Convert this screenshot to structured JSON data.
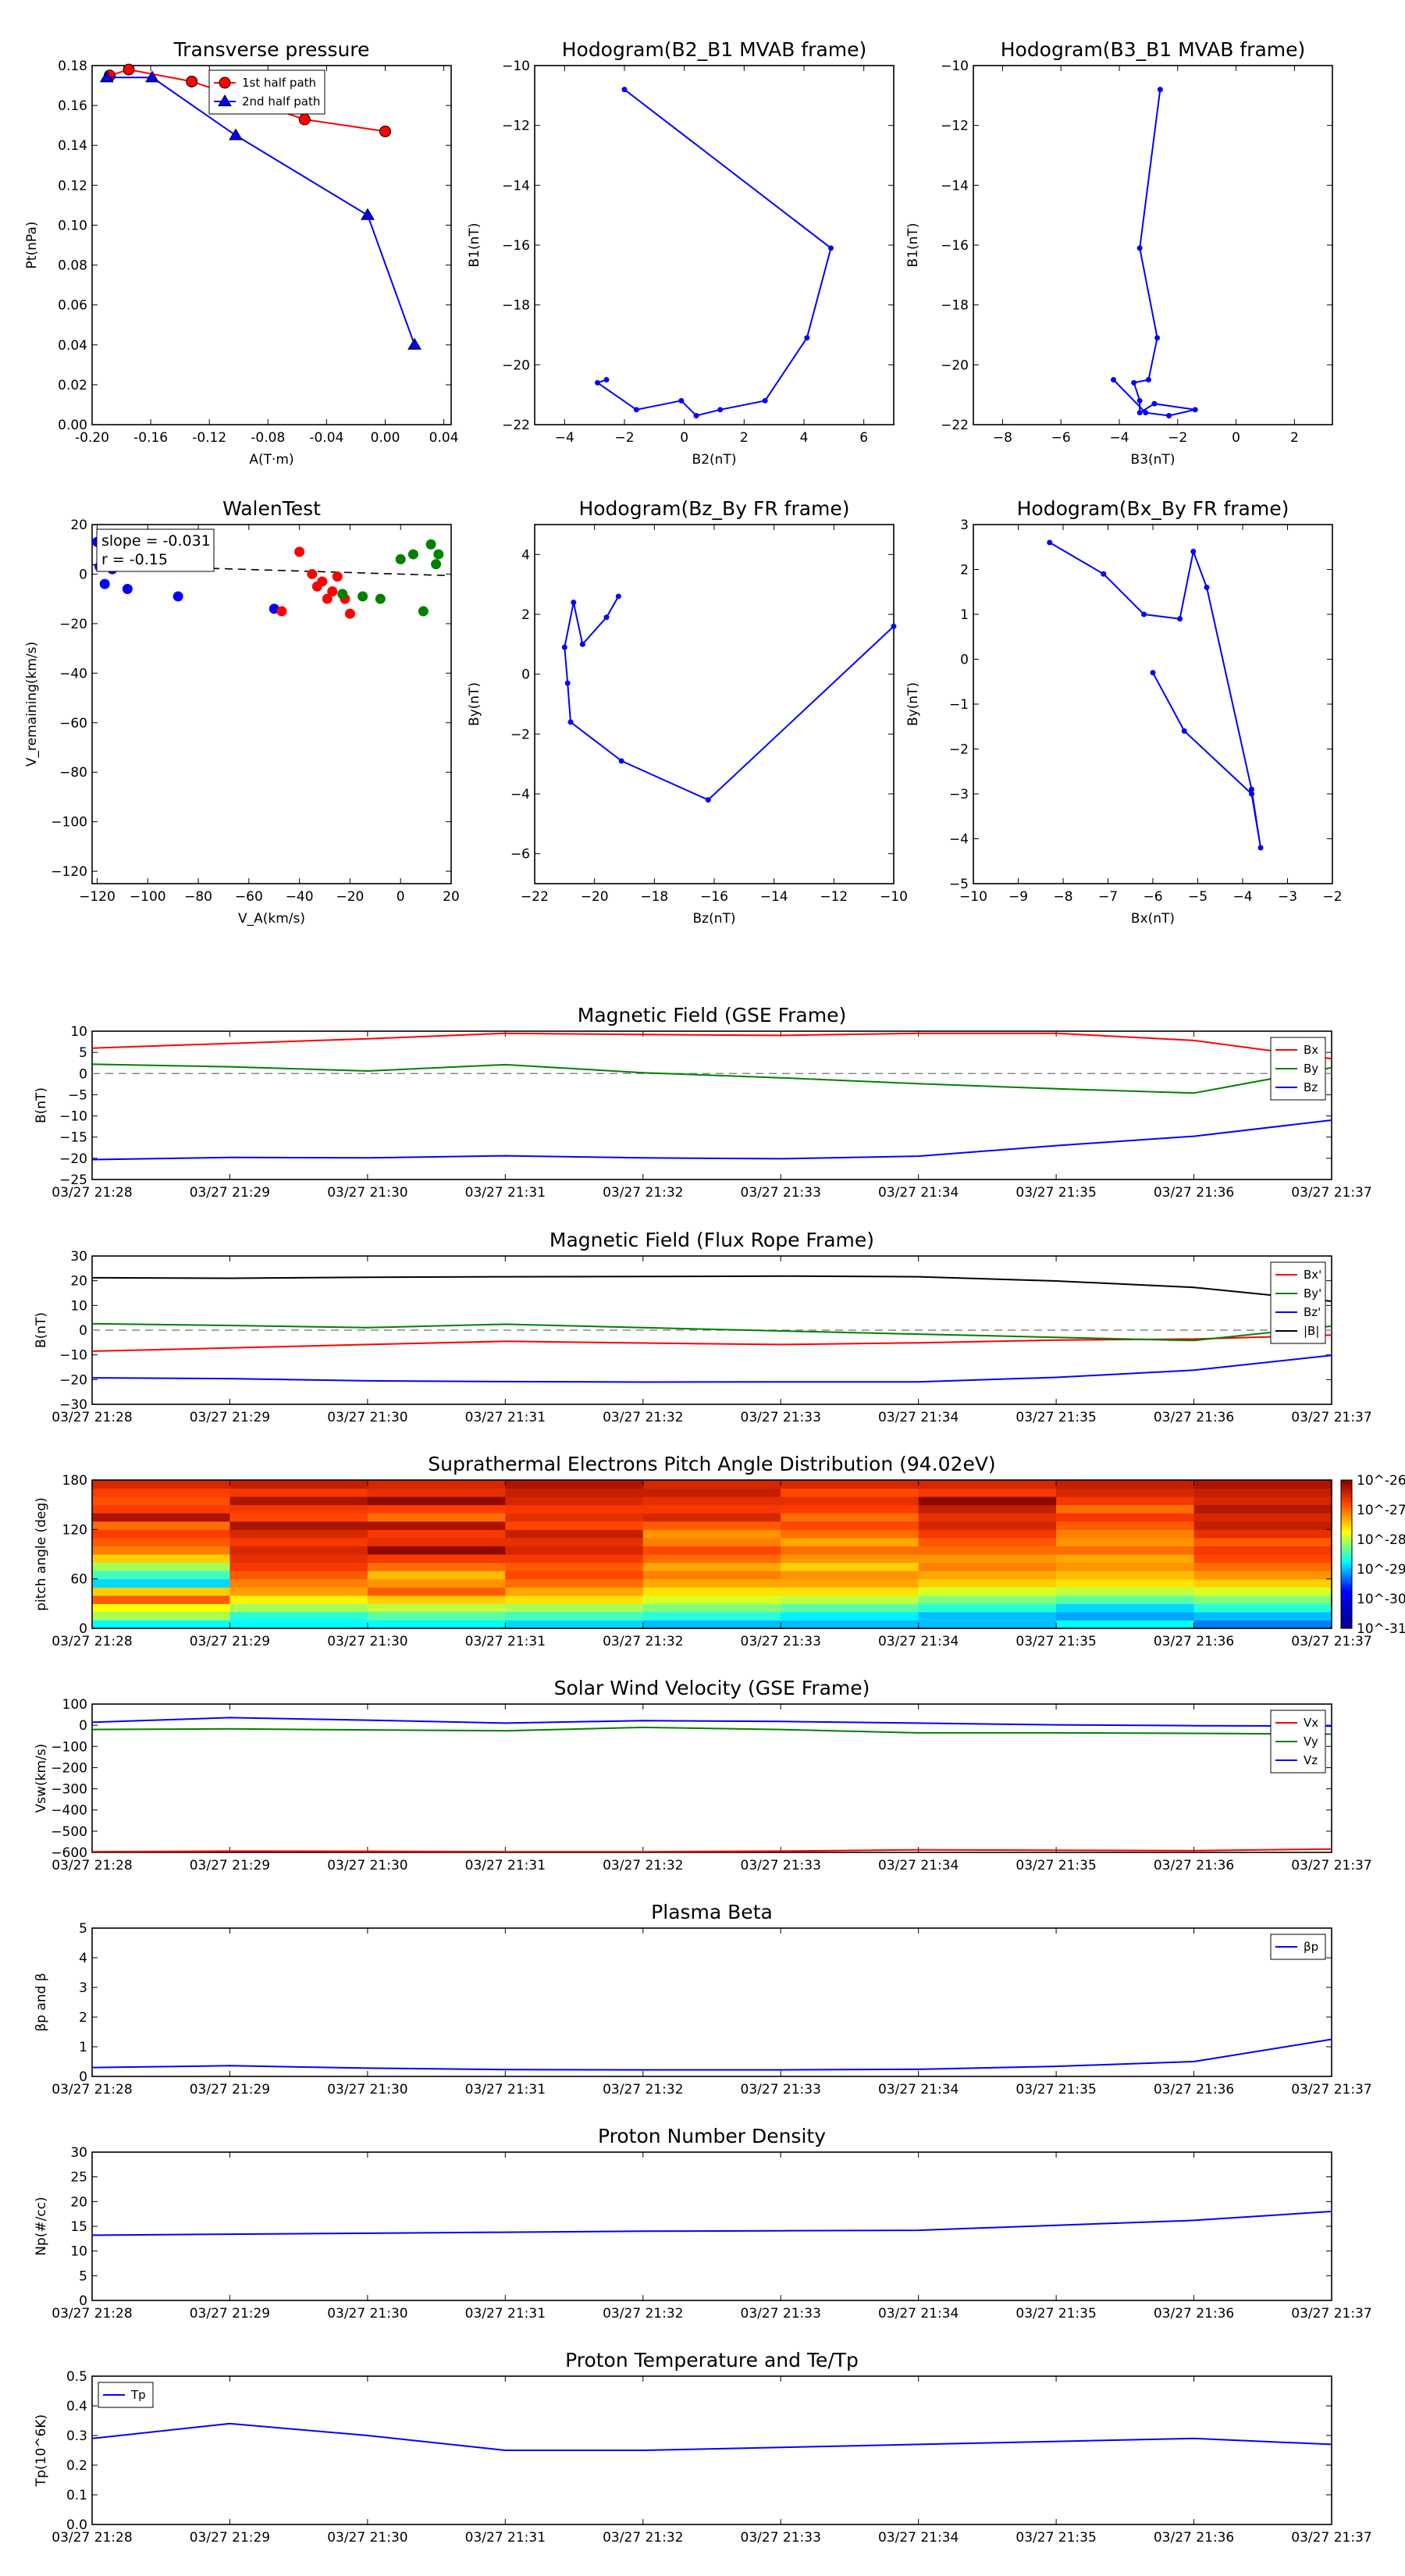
{
  "chart_data": [
    {
      "id": "tp",
      "type": "line",
      "title": "Transverse pressure",
      "xlabel": "A(T·m)",
      "ylabel": "Pt(nPa)",
      "xlim": [
        -0.2,
        0.045
      ],
      "ylim": [
        0,
        0.18
      ],
      "xticks": [
        "-0.20",
        "-0.16",
        "-0.12",
        "-0.08",
        "-0.04",
        "0.00",
        "0.04"
      ],
      "yticks": [
        "0.00",
        "0.02",
        "0.04",
        "0.06",
        "0.08",
        "0.10",
        "0.12",
        "0.14",
        "0.16",
        "0.18"
      ],
      "legend": "top-right",
      "series": [
        {
          "name": "1st half path",
          "color": "#ff0000",
          "marker": "circle",
          "x": [
            0.0,
            -0.055,
            -0.132,
            -0.175,
            -0.188
          ],
          "y": [
            0.147,
            0.153,
            0.172,
            0.178,
            0.175
          ]
        },
        {
          "name": "2nd half path",
          "color": "#0000ff",
          "marker": "triangle",
          "x": [
            -0.19,
            -0.159,
            -0.102,
            -0.012,
            0.02
          ],
          "y": [
            0.174,
            0.174,
            0.145,
            0.105,
            0.04
          ]
        }
      ]
    },
    {
      "id": "h1",
      "type": "line",
      "title": "Hodogram(B2_B1 MVAB frame)",
      "xlabel": "B2(nT)",
      "ylabel": "B1(nT)",
      "xlim": [
        -5,
        7
      ],
      "ylim": [
        -22,
        -10
      ],
      "xticks": [
        "−4",
        "−2",
        "0",
        "2",
        "4",
        "6"
      ],
      "yticks": [
        "−22",
        "−20",
        "−18",
        "−16",
        "−14",
        "−12",
        "−10"
      ],
      "series": [
        {
          "name": "",
          "color": "#0000ff",
          "marker": "dot",
          "x": [
            -2.0,
            4.9,
            4.1,
            2.7,
            1.2,
            0.4,
            -0.1,
            -1.6,
            -2.9,
            -2.6
          ],
          "y": [
            -10.8,
            -16.1,
            -19.1,
            -21.2,
            -21.5,
            -21.7,
            -21.2,
            -21.5,
            -20.6,
            -20.5
          ]
        }
      ]
    },
    {
      "id": "h2",
      "type": "line",
      "title": "Hodogram(B3_B1 MVAB frame)",
      "xlabel": "B3(nT)",
      "ylabel": "B1(nT)",
      "xlim": [
        -9,
        3.3
      ],
      "ylim": [
        -22,
        -10
      ],
      "xticks": [
        "−8",
        "−6",
        "−4",
        "−2",
        "0",
        "2"
      ],
      "yticks": [
        "−22",
        "−20",
        "−18",
        "−16",
        "−14",
        "−12",
        "−10"
      ],
      "series": [
        {
          "name": "",
          "color": "#0000ff",
          "marker": "dot",
          "x": [
            -2.6,
            -3.3,
            -2.7,
            -3.0,
            -3.5,
            -3.3,
            -3.3,
            -2.8,
            -1.4,
            -2.3,
            -3.1,
            -4.2
          ],
          "y": [
            -10.8,
            -16.1,
            -19.1,
            -20.5,
            -20.6,
            -21.2,
            -21.6,
            -21.3,
            -21.5,
            -21.7,
            -21.6,
            -20.5
          ]
        }
      ]
    },
    {
      "id": "walen",
      "type": "scatter",
      "title": "WalenTest",
      "xlabel": "V_A(km/s)",
      "ylabel": "V_remaining(km/s)",
      "xlim": [
        -122,
        20
      ],
      "ylim": [
        -125,
        20
      ],
      "xticks": [
        "−120",
        "−100",
        "−80",
        "−60",
        "−40",
        "−20",
        "0",
        "20"
      ],
      "yticks": [
        "−120",
        "−100",
        "−80",
        "−60",
        "−40",
        "−20",
        "0",
        "20"
      ],
      "annotations": [
        "slope = -0.031",
        "r = -0.15"
      ],
      "fit_line": {
        "slope": -0.031,
        "intercept": 0
      },
      "series": [
        {
          "name": "",
          "color": "#0000ff",
          "x": [
            -120,
            -119,
            -117,
            -114,
            -108,
            -88,
            -50
          ],
          "y": [
            13,
            3,
            -4,
            2,
            -6,
            -9,
            -14
          ]
        },
        {
          "name": "",
          "color": "#ff0000",
          "x": [
            -47,
            -40,
            -35,
            -33,
            -31,
            -29,
            -27,
            -25,
            -22,
            -20
          ],
          "y": [
            -15,
            9,
            0,
            -5,
            -3,
            -10,
            -7,
            -1,
            -10,
            -16
          ]
        },
        {
          "name": "",
          "color": "#008000",
          "x": [
            -23,
            -15,
            -8,
            0,
            5,
            6,
            9,
            12,
            14,
            15
          ],
          "y": [
            -8,
            -9,
            -10,
            6,
            8,
            22,
            -15,
            12,
            4,
            8
          ]
        }
      ]
    },
    {
      "id": "h3",
      "type": "line",
      "title": "Hodogram(Bz_By FR frame)",
      "xlabel": "Bz(nT)",
      "ylabel": "By(nT)",
      "xlim": [
        -22,
        -10
      ],
      "ylim": [
        -7,
        5
      ],
      "xticks": [
        "−22",
        "−20",
        "−18",
        "−16",
        "−14",
        "−12",
        "−10"
      ],
      "yticks": [
        "−6",
        "−4",
        "−2",
        "0",
        "2",
        "4"
      ],
      "series": [
        {
          "name": "",
          "color": "#0000ff",
          "marker": "dot",
          "x": [
            -10,
            -16.2,
            -19.1,
            -20.8,
            -20.9,
            -21.0,
            -20.7,
            -20.4,
            -19.6,
            -19.2
          ],
          "y": [
            1.6,
            -4.2,
            -2.9,
            -1.6,
            -0.3,
            0.9,
            2.4,
            1.0,
            1.9,
            2.6
          ]
        }
      ]
    },
    {
      "id": "h4",
      "type": "line",
      "title": "Hodogram(Bx_By FR frame)",
      "xlabel": "Bx(nT)",
      "ylabel": "By(nT)",
      "xlim": [
        -10,
        -2
      ],
      "ylim": [
        -5,
        3
      ],
      "xticks": [
        "−10",
        "−9",
        "−8",
        "−7",
        "−6",
        "−5",
        "−4",
        "−3",
        "−2"
      ],
      "yticks": [
        "−5",
        "−4",
        "−3",
        "−2",
        "−1",
        "0",
        "1",
        "2",
        "3"
      ],
      "series": [
        {
          "name": "",
          "color": "#0000ff",
          "marker": "dot",
          "x": [
            -8.3,
            -7.1,
            -6.2,
            -5.4,
            -5.1,
            -4.8,
            -3.8,
            -3.6,
            -3.8,
            -5.3,
            -6.0
          ],
          "y": [
            2.6,
            1.9,
            1.0,
            0.9,
            2.4,
            1.6,
            -2.9,
            -4.2,
            -3.0,
            -1.6,
            -0.3
          ]
        }
      ]
    },
    {
      "id": "mgse",
      "type": "line",
      "title": "Magnetic Field (GSE Frame)",
      "xlabel": "",
      "ylabel": "B(nT)",
      "x": [
        "03/27 21:28",
        "03/27 21:29",
        "03/27 21:30",
        "03/27 21:31",
        "03/27 21:32",
        "03/27 21:33",
        "03/27 21:34",
        "03/27 21:35",
        "03/27 21:36",
        "03/27 21:37"
      ],
      "ylim": [
        -25,
        10
      ],
      "yticks": [
        "−25",
        "−20",
        "−15",
        "−10",
        "−5",
        "0",
        "5",
        "10"
      ],
      "zero_line": true,
      "legend": "top-right",
      "series": [
        {
          "name": "Bx",
          "color": "#ff0000",
          "values": [
            6,
            7.1,
            8.2,
            9.5,
            9.2,
            9.0,
            9.5,
            9.5,
            7.8,
            3.5
          ]
        },
        {
          "name": "By",
          "color": "#008000",
          "values": [
            2.2,
            1.6,
            0.6,
            2.1,
            0.2,
            -1.0,
            -2.4,
            -3.6,
            -4.6,
            1.4
          ]
        },
        {
          "name": "Bz",
          "color": "#0000ff",
          "values": [
            -20.3,
            -19.8,
            -19.9,
            -19.4,
            -19.9,
            -20.1,
            -19.5,
            -17.0,
            -14.8,
            -11.0
          ]
        }
      ]
    },
    {
      "id": "mfr",
      "type": "line",
      "title": "Magnetic Field (Flux Rope Frame)",
      "xlabel": "",
      "ylabel": "B(nT)",
      "x": [
        "03/27 21:28",
        "03/27 21:29",
        "03/27 21:30",
        "03/27 21:31",
        "03/27 21:32",
        "03/27 21:33",
        "03/27 21:34",
        "03/27 21:35",
        "03/27 21:36",
        "03/27 21:37"
      ],
      "ylim": [
        -30,
        30
      ],
      "yticks": [
        "−30",
        "−20",
        "−10",
        "0",
        "10",
        "20",
        "30"
      ],
      "zero_line": true,
      "legend": "top-right",
      "series": [
        {
          "name": "Bx'",
          "color": "#ff0000",
          "values": [
            -8.5,
            -7.2,
            -5.8,
            -4.5,
            -5.2,
            -5.8,
            -5.1,
            -4.0,
            -3.6,
            -2.0
          ]
        },
        {
          "name": "By'",
          "color": "#008000",
          "values": [
            2.6,
            1.9,
            1.0,
            2.4,
            1.0,
            -0.3,
            -1.6,
            -2.9,
            -4.2,
            1.6
          ]
        },
        {
          "name": "Bz'",
          "color": "#0000ff",
          "values": [
            -19.3,
            -19.6,
            -20.5,
            -20.8,
            -21.0,
            -20.9,
            -20.9,
            -19.1,
            -16.2,
            -10.2
          ]
        },
        {
          "name": "|B|",
          "color": "#000000",
          "values": [
            21.2,
            21.0,
            21.4,
            21.6,
            21.7,
            21.9,
            21.6,
            19.9,
            17.3,
            11.7
          ]
        }
      ]
    },
    {
      "id": "pad",
      "type": "heatmap",
      "title": "Suprathermal Electrons Pitch Angle Distribution (94.02eV)",
      "xlabel": "",
      "ylabel": "pitch angle (deg)",
      "x": [
        "03/27 21:28",
        "03/27 21:29",
        "03/27 21:30",
        "03/27 21:31",
        "03/27 21:32",
        "03/27 21:33",
        "03/27 21:34",
        "03/27 21:35",
        "03/27 21:36",
        "03/27 21:37"
      ],
      "ylim": [
        0,
        180
      ],
      "yticks": [
        "0",
        "60",
        "120",
        "180"
      ],
      "colorbar_ticks": [
        "10^-26",
        "10^-27",
        "10^-28",
        "10^-29",
        "10^-30",
        "10^-31"
      ],
      "colorbar_range": [
        -31,
        -26
      ],
      "column_levels": [
        [
          0.45,
          0.58,
          0.65,
          0.82,
          0.7,
          0.42,
          0.5,
          0.58,
          0.7,
          0.78,
          0.82,
          0.85,
          0.8,
          0.95,
          0.85,
          0.83,
          0.85,
          0.9
        ],
        [
          0.45,
          0.48,
          0.58,
          0.66,
          0.75,
          0.78,
          0.82,
          0.86,
          0.88,
          0.9,
          0.86,
          0.9,
          0.95,
          0.84,
          0.86,
          0.95,
          0.86,
          0.92
        ],
        [
          0.45,
          0.52,
          0.6,
          0.7,
          0.82,
          0.76,
          0.72,
          0.8,
          0.86,
          0.98,
          0.88,
          0.86,
          0.95,
          0.8,
          0.85,
          0.98,
          0.88,
          0.9
        ],
        [
          0.42,
          0.5,
          0.58,
          0.68,
          0.74,
          0.8,
          0.84,
          0.82,
          0.86,
          0.9,
          0.88,
          0.92,
          0.84,
          0.88,
          0.86,
          0.9,
          0.92,
          0.95
        ],
        [
          0.4,
          0.48,
          0.55,
          0.62,
          0.68,
          0.74,
          0.78,
          0.74,
          0.8,
          0.84,
          0.78,
          0.76,
          0.82,
          0.9,
          0.86,
          0.88,
          0.92,
          0.9
        ],
        [
          0.4,
          0.44,
          0.52,
          0.6,
          0.68,
          0.74,
          0.76,
          0.7,
          0.76,
          0.8,
          0.74,
          0.8,
          0.84,
          0.8,
          0.85,
          0.88,
          0.84,
          0.9
        ],
        [
          0.4,
          0.4,
          0.48,
          0.55,
          0.62,
          0.7,
          0.74,
          0.78,
          0.76,
          0.8,
          0.82,
          0.86,
          0.9,
          0.88,
          0.92,
          0.98,
          0.86,
          0.9
        ],
        [
          0.45,
          0.38,
          0.42,
          0.52,
          0.6,
          0.68,
          0.72,
          0.76,
          0.74,
          0.8,
          0.76,
          0.78,
          0.82,
          0.86,
          0.8,
          0.86,
          0.9,
          0.92
        ],
        [
          0.35,
          0.4,
          0.48,
          0.55,
          0.62,
          0.7,
          0.76,
          0.8,
          0.84,
          0.86,
          0.82,
          0.88,
          0.92,
          0.9,
          0.94,
          0.9,
          0.92,
          0.95
        ]
      ]
    },
    {
      "id": "vsw",
      "type": "line",
      "title": "Solar Wind Velocity (GSE Frame)",
      "xlabel": "",
      "ylabel": "Vsw(km/s)",
      "x": [
        "03/27 21:28",
        "03/27 21:29",
        "03/27 21:30",
        "03/27 21:31",
        "03/27 21:32",
        "03/27 21:33",
        "03/27 21:34",
        "03/27 21:35",
        "03/27 21:36",
        "03/27 21:37"
      ],
      "ylim": [
        -600,
        100
      ],
      "yticks": [
        "−600",
        "−500",
        "−400",
        "−300",
        "−200",
        "−100",
        "0",
        "100"
      ],
      "legend": "top-right",
      "series": [
        {
          "name": "Vx",
          "color": "#ff0000",
          "values": [
            -597,
            -594,
            -595,
            -597,
            -597,
            -594,
            -588,
            -590,
            -592,
            -584
          ]
        },
        {
          "name": "Vy",
          "color": "#008000",
          "values": [
            -20,
            -17,
            -22,
            -26,
            -10,
            -20,
            -36,
            -36,
            -38,
            -42
          ]
        },
        {
          "name": "Vz",
          "color": "#0000ff",
          "values": [
            14,
            36,
            24,
            10,
            22,
            18,
            10,
            2,
            -2,
            -4
          ]
        }
      ]
    },
    {
      "id": "beta",
      "type": "line",
      "title": "Plasma Beta",
      "xlabel": "",
      "ylabel": "βp and β",
      "x": [
        "03/27 21:28",
        "03/27 21:29",
        "03/27 21:30",
        "03/27 21:31",
        "03/27 21:32",
        "03/27 21:33",
        "03/27 21:34",
        "03/27 21:35",
        "03/27 21:36",
        "03/27 21:37"
      ],
      "ylim": [
        0,
        5
      ],
      "yticks": [
        "0",
        "1",
        "2",
        "3",
        "4",
        "5"
      ],
      "legend": "top-right",
      "series": [
        {
          "name": "βp",
          "color": "#0000ff",
          "values": [
            0.3,
            0.36,
            0.28,
            0.23,
            0.22,
            0.22,
            0.24,
            0.34,
            0.5,
            1.25
          ]
        }
      ]
    },
    {
      "id": "np",
      "type": "line",
      "title": "Proton Number Density",
      "xlabel": "",
      "ylabel": "Np(#/cc)",
      "x": [
        "03/27 21:28",
        "03/27 21:29",
        "03/27 21:30",
        "03/27 21:31",
        "03/27 21:32",
        "03/27 21:33",
        "03/27 21:34",
        "03/27 21:35",
        "03/27 21:36",
        "03/27 21:37"
      ],
      "ylim": [
        0,
        30
      ],
      "yticks": [
        "0",
        "5",
        "10",
        "15",
        "20",
        "25",
        "30"
      ],
      "series": [
        {
          "name": "",
          "color": "#0000ff",
          "values": [
            13.2,
            13.4,
            13.6,
            13.8,
            14.0,
            14.1,
            14.2,
            15.2,
            16.2,
            18.0
          ]
        }
      ]
    },
    {
      "id": "tpr",
      "type": "line",
      "title": "Proton Temperature and Te/Tp",
      "xlabel": "",
      "ylabel": "Tp(10^6K)",
      "x": [
        "03/27 21:28",
        "03/27 21:29",
        "03/27 21:30",
        "03/27 21:31",
        "03/27 21:32",
        "03/27 21:33",
        "03/27 21:34",
        "03/27 21:35",
        "03/27 21:36",
        "03/27 21:37"
      ],
      "ylim": [
        0,
        0.5
      ],
      "yticks": [
        "0.0",
        "0.1",
        "0.2",
        "0.3",
        "0.4",
        "0.5"
      ],
      "legend": "top-left",
      "series": [
        {
          "name": "Tp",
          "color": "#0000ff",
          "values": [
            0.29,
            0.34,
            0.3,
            0.25,
            0.25,
            0.26,
            0.27,
            0.28,
            0.29,
            0.27
          ]
        }
      ]
    }
  ]
}
